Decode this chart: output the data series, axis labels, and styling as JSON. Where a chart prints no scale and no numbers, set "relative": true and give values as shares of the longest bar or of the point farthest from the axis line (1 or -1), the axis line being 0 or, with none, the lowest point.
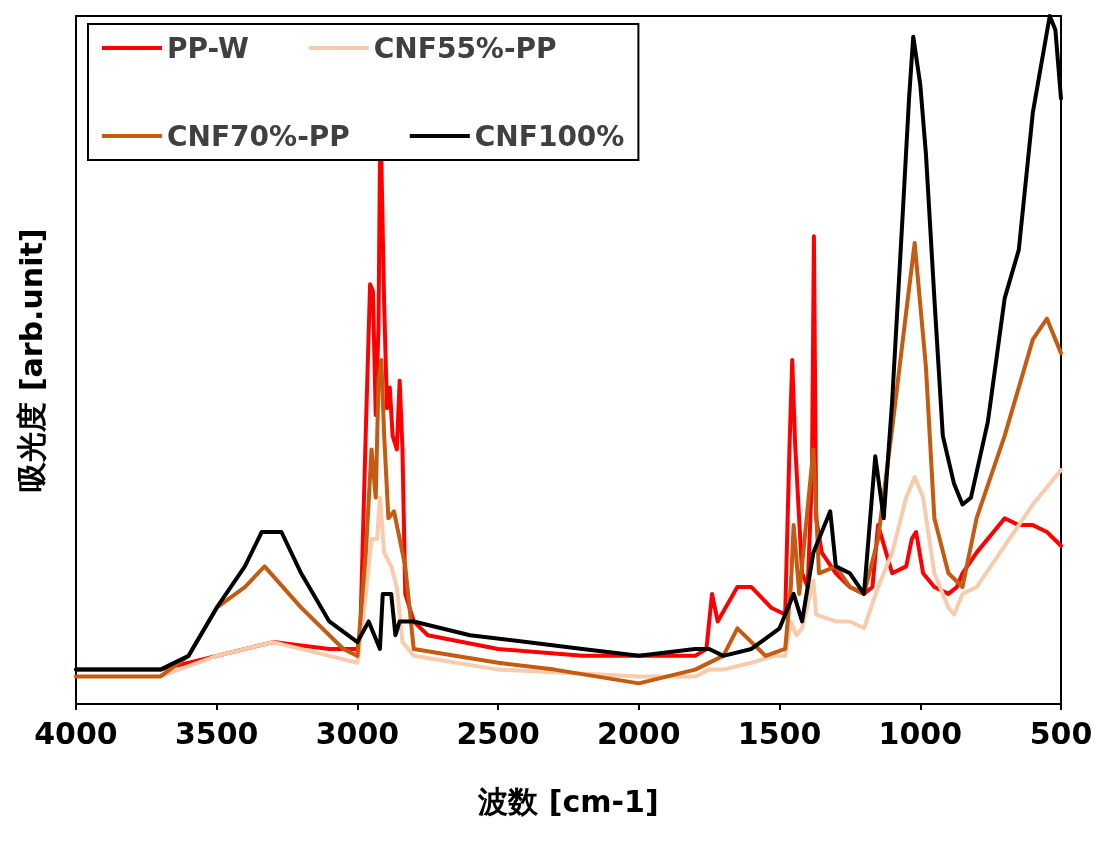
{
  "chart_data": {
    "type": "line",
    "relative": true,
    "xlabel": "波数 [cm-1]",
    "ylabel": "吸光度 [arb.unit]",
    "xlim": [
      4000,
      500
    ],
    "xticks": [
      4000,
      3500,
      3000,
      2500,
      2000,
      1500,
      1000,
      500
    ],
    "grid": false,
    "legend": "top left",
    "marker": "none",
    "line_style": "solid",
    "series": [
      {
        "name": "PP-W",
        "color": "#ff0000",
        "x": [
          4000,
          3700,
          3500,
          3300,
          3100,
          3000,
          2990,
          2970,
          2955,
          2945,
          2935,
          2925,
          2920,
          2915,
          2905,
          2895,
          2885,
          2875,
          2860,
          2850,
          2840,
          2830,
          2800,
          2750,
          2500,
          2200,
          2000,
          1800,
          1760,
          1740,
          1720,
          1650,
          1600,
          1530,
          1480,
          1465,
          1455,
          1445,
          1420,
          1400,
          1385,
          1378,
          1370,
          1350,
          1300,
          1250,
          1200,
          1170,
          1150,
          1100,
          1050,
          1030,
          1015,
          990,
          950,
          900,
          870,
          850,
          800,
          700,
          650,
          600,
          550,
          500
        ],
        "values": [
          0.05,
          0.05,
          0.07,
          0.09,
          0.08,
          0.08,
          0.1,
          0.4,
          0.61,
          0.6,
          0.42,
          0.55,
          0.79,
          0.79,
          0.58,
          0.43,
          0.46,
          0.39,
          0.37,
          0.47,
          0.37,
          0.16,
          0.12,
          0.1,
          0.08,
          0.07,
          0.07,
          0.07,
          0.08,
          0.16,
          0.12,
          0.17,
          0.17,
          0.14,
          0.13,
          0.37,
          0.5,
          0.38,
          0.19,
          0.17,
          0.33,
          0.68,
          0.27,
          0.22,
          0.19,
          0.17,
          0.16,
          0.17,
          0.26,
          0.19,
          0.2,
          0.24,
          0.25,
          0.19,
          0.17,
          0.16,
          0.17,
          0.19,
          0.22,
          0.27,
          0.26,
          0.26,
          0.25,
          0.23
        ]
      },
      {
        "name": "CNF55%-PP",
        "color": "#f8cbad",
        "x": [
          3700,
          3500,
          3300,
          3100,
          3000,
          2970,
          2950,
          2930,
          2920,
          2905,
          2880,
          2860,
          2840,
          2800,
          2500,
          2000,
          1800,
          1750,
          1700,
          1600,
          1520,
          1480,
          1460,
          1440,
          1420,
          1380,
          1370,
          1300,
          1250,
          1200,
          1150,
          1100,
          1050,
          1020,
          990,
          950,
          900,
          880,
          850,
          800,
          700,
          600,
          500
        ],
        "values": [
          0.04,
          0.07,
          0.09,
          0.07,
          0.06,
          0.16,
          0.24,
          0.24,
          0.3,
          0.22,
          0.2,
          0.17,
          0.09,
          0.07,
          0.05,
          0.04,
          0.04,
          0.05,
          0.05,
          0.06,
          0.07,
          0.07,
          0.12,
          0.1,
          0.11,
          0.18,
          0.13,
          0.12,
          0.12,
          0.11,
          0.17,
          0.22,
          0.3,
          0.33,
          0.3,
          0.19,
          0.14,
          0.13,
          0.16,
          0.17,
          0.23,
          0.29,
          0.34
        ]
      },
      {
        "name": "CNF70%-PP",
        "color": "#c55a11",
        "x": [
          4000,
          3700,
          3600,
          3500,
          3400,
          3330,
          3200,
          3050,
          3000,
          2970,
          2950,
          2935,
          2925,
          2915,
          2905,
          2890,
          2870,
          2850,
          2830,
          2800,
          2500,
          2300,
          2000,
          1800,
          1700,
          1650,
          1550,
          1480,
          1460,
          1450,
          1430,
          1380,
          1360,
          1300,
          1250,
          1200,
          1150,
          1100,
          1050,
          1020,
          980,
          950,
          900,
          850,
          800,
          700,
          600,
          550,
          500
        ],
        "values": [
          0.04,
          0.04,
          0.07,
          0.14,
          0.17,
          0.2,
          0.14,
          0.08,
          0.07,
          0.22,
          0.37,
          0.3,
          0.47,
          0.5,
          0.39,
          0.27,
          0.28,
          0.24,
          0.2,
          0.08,
          0.06,
          0.05,
          0.03,
          0.05,
          0.07,
          0.11,
          0.07,
          0.08,
          0.17,
          0.26,
          0.16,
          0.37,
          0.19,
          0.2,
          0.17,
          0.16,
          0.24,
          0.4,
          0.57,
          0.67,
          0.49,
          0.27,
          0.19,
          0.17,
          0.27,
          0.39,
          0.53,
          0.56,
          0.51
        ]
      },
      {
        "name": "CNF100%",
        "color": "#000000",
        "x": [
          4000,
          3700,
          3600,
          3500,
          3400,
          3340,
          3270,
          3200,
          3100,
          3000,
          2960,
          2920,
          2910,
          2880,
          2865,
          2850,
          2800,
          2600,
          2400,
          2200,
          2000,
          1800,
          1750,
          1700,
          1600,
          1500,
          1450,
          1420,
          1380,
          1320,
          1300,
          1250,
          1200,
          1160,
          1130,
          1100,
          1060,
          1040,
          1025,
          1000,
          980,
          950,
          920,
          880,
          850,
          820,
          760,
          700,
          650,
          600,
          540,
          520,
          500
        ],
        "values": [
          0.05,
          0.05,
          0.07,
          0.14,
          0.2,
          0.25,
          0.25,
          0.19,
          0.12,
          0.09,
          0.12,
          0.08,
          0.16,
          0.16,
          0.1,
          0.12,
          0.12,
          0.1,
          0.09,
          0.08,
          0.07,
          0.08,
          0.08,
          0.07,
          0.08,
          0.11,
          0.16,
          0.12,
          0.22,
          0.28,
          0.2,
          0.19,
          0.16,
          0.36,
          0.27,
          0.44,
          0.73,
          0.88,
          0.97,
          0.9,
          0.8,
          0.59,
          0.39,
          0.32,
          0.29,
          0.3,
          0.41,
          0.59,
          0.66,
          0.86,
          1,
          0.98,
          0.88
        ]
      }
    ]
  }
}
